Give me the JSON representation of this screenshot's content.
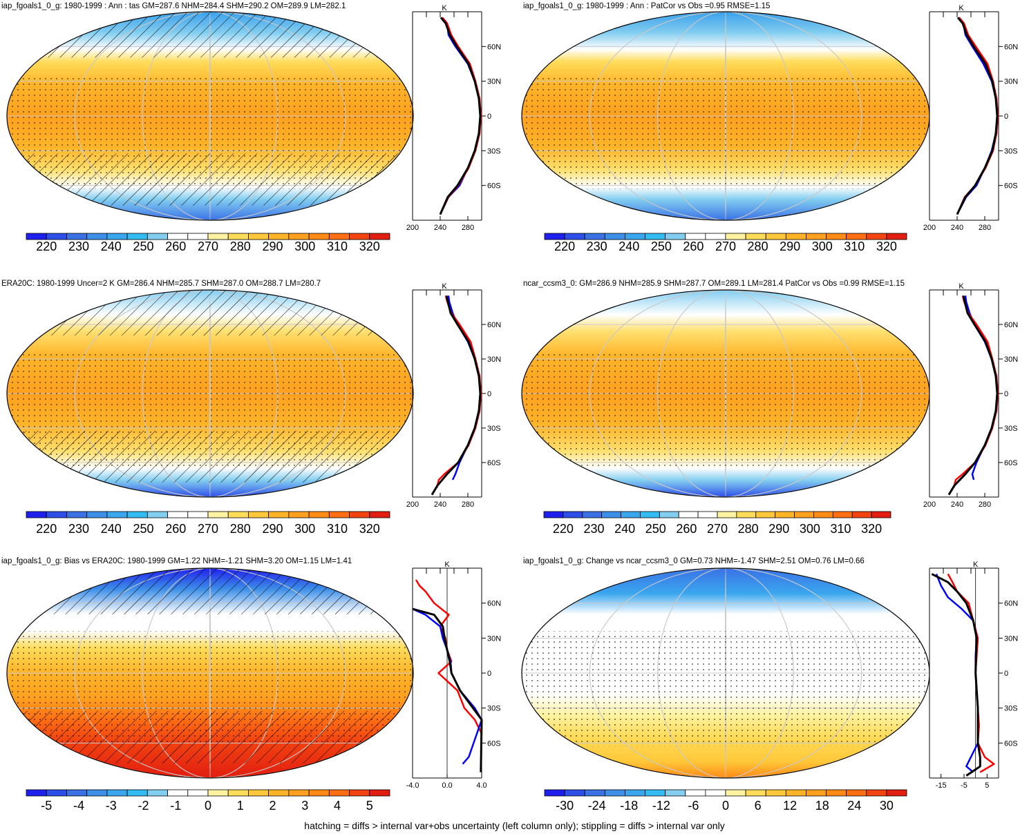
{
  "palettes": {
    "temp": [
      "#2020ee",
      "#2d4fe8",
      "#3a72e6",
      "#3d8fe8",
      "#3aa6ee",
      "#32bcf2",
      "#82cdf0",
      "#ffffff",
      "#ffffff",
      "#fff2a0",
      "#ffdc5a",
      "#ffc83a",
      "#ffb428",
      "#ffa01e",
      "#ff8a16",
      "#ff6e12",
      "#f24410",
      "#e11e10"
    ],
    "diff": [
      "#2020ee",
      "#2d4fe8",
      "#3a72e6",
      "#3d8fe8",
      "#3aa6ee",
      "#32bcf2",
      "#82cdf0",
      "#ffffff",
      "#ffffff",
      "#fff2a0",
      "#ffdc5a",
      "#ffc83a",
      "#ffb428",
      "#ffa01e",
      "#ff8a16",
      "#ff6e12",
      "#f24410",
      "#e11e10"
    ]
  },
  "colorbars": {
    "temp": [
      "220",
      "230",
      "240",
      "250",
      "260",
      "270",
      "280",
      "290",
      "300",
      "310",
      "320"
    ],
    "bias": [
      "-5",
      "-4",
      "-3",
      "-2",
      "-1",
      "0",
      "1",
      "2",
      "3",
      "4",
      "5"
    ],
    "change": [
      "-30",
      "-24",
      "-18",
      "-12",
      "-6",
      "0",
      "6",
      "12",
      "18",
      "24",
      "30"
    ]
  },
  "lat_ticks": [
    "60N",
    "30N",
    "0",
    "30S",
    "60S"
  ],
  "panels": [
    {
      "title": "iap_fgoals1_0_g: 1980-1999 : Ann : tas GM=287.6 NHM=284.4 SHM=290.2 OM=289.9 LM=282.1",
      "colorbar": "temp",
      "hatch": true,
      "xticks": [
        "200",
        "240",
        "280"
      ],
      "unit": "K"
    },
    {
      "title": "iap_fgoals1_0_g: 1980-1999 : Ann : PatCor vs Obs =0.95 RMSE=1.15",
      "colorbar": "temp",
      "hatch": false,
      "xticks": [
        "200",
        "240",
        "280"
      ],
      "unit": "K"
    },
    {
      "title": "ERA20C: 1980-1999 Uncer=2 K GM=286.4 NHM=285.7 SHM=287.0 OM=288.7 LM=280.7",
      "colorbar": "temp",
      "hatch": true,
      "xticks": [
        "200",
        "240",
        "280"
      ],
      "unit": "K"
    },
    {
      "title": "ncar_ccsm3_0: GM=286.9 NHM=285.9 SHM=287.7 OM=289.1 LM=281.4 PatCor vs Obs =0.99 RMSE=1.15",
      "colorbar": "temp",
      "hatch": false,
      "xticks": [
        "200",
        "240",
        "280"
      ],
      "unit": "K"
    },
    {
      "title": "iap_fgoals1_0_g: Bias vs ERA20C: 1980-1999 GM=1.22 NHM=-1.21 SHM=3.20 OM=1.15 LM=1.41",
      "colorbar": "bias",
      "hatch": true,
      "xticks": [
        "-4.0",
        "0.0",
        "4.0"
      ],
      "unit": "K"
    },
    {
      "title": "iap_fgoals1_0_g: Change vs ncar_ccsm3_0 GM=0.73 NHM=-1.47 SHM=2.51 OM=0.76 LM=0.66",
      "colorbar": "change",
      "hatch": false,
      "xticks": [
        "-15",
        "-5",
        "5"
      ],
      "unit": "K"
    }
  ],
  "caption": "hatching = diffs > internal var+obs uncertainty (left column only); stippling = diffs > internal var only",
  "chart_data": [
    {
      "type": "line",
      "title": "iap_fgoals1_0_g: 1980-1999 : Ann : tas GM=287.6 NHM=284.4 SHM=290.2 OM=289.9 LM=282.1",
      "xlabel": "K",
      "xlim": [
        200,
        300
      ],
      "ylim": [
        -90,
        90
      ],
      "yticks": [
        "60N",
        "30N",
        "0",
        "30S",
        "60S"
      ],
      "colorbar": [
        "220",
        "230",
        "240",
        "250",
        "260",
        "270",
        "280",
        "290",
        "300",
        "310",
        "320"
      ],
      "series": [
        {
          "color": "#0000ff",
          "lat": [
            -85,
            -70,
            -60,
            -45,
            -30,
            -15,
            0,
            15,
            30,
            45,
            60,
            70,
            80,
            85
          ],
          "values": [
            240,
            252,
            268,
            280,
            290,
            296,
            298,
            296,
            290,
            280,
            262,
            252,
            250,
            243
          ]
        },
        {
          "color": "#ff0000",
          "lat": [
            -85,
            -70,
            -60,
            -45,
            -30,
            -15,
            0,
            15,
            30,
            45,
            60,
            70,
            80,
            85
          ],
          "values": [
            240,
            252,
            266,
            281,
            291,
            297,
            299,
            297,
            291,
            283,
            266,
            256,
            250,
            243
          ]
        },
        {
          "color": "#000000",
          "lat": [
            -85,
            -70,
            -60,
            -45,
            -30,
            -15,
            0,
            15,
            30,
            45,
            60,
            70,
            80,
            85
          ],
          "values": [
            240,
            251,
            265,
            280,
            290,
            296,
            298,
            296,
            290,
            281,
            264,
            254,
            248,
            241
          ]
        }
      ]
    },
    {
      "type": "line",
      "title": "iap_fgoals1_0_g: 1980-1999 : Ann : PatCor vs Obs =0.95 RMSE=1.15",
      "xlabel": "K",
      "xlim": [
        200,
        300
      ],
      "ylim": [
        -90,
        90
      ],
      "yticks": [
        "60N",
        "30N",
        "0",
        "30S",
        "60S"
      ],
      "colorbar": [
        "220",
        "230",
        "240",
        "250",
        "260",
        "270",
        "280",
        "290",
        "300",
        "310",
        "320"
      ],
      "series": [
        {
          "color": "#0000ff",
          "lat": [
            -85,
            -70,
            -60,
            -45,
            -30,
            -15,
            0,
            15,
            30,
            45,
            60,
            70,
            80,
            85
          ],
          "values": [
            240,
            253,
            268,
            280,
            290,
            296,
            298,
            296,
            290,
            278,
            262,
            252,
            249,
            243
          ]
        },
        {
          "color": "#ff0000",
          "lat": [
            -85,
            -70,
            -60,
            -45,
            -30,
            -15,
            0,
            15,
            30,
            45,
            60,
            70,
            80,
            85
          ],
          "values": [
            240,
            251,
            266,
            281,
            292,
            297,
            299,
            297,
            292,
            284,
            267,
            256,
            250,
            243
          ]
        },
        {
          "color": "#000000",
          "lat": [
            -85,
            -70,
            -60,
            -45,
            -30,
            -15,
            0,
            15,
            30,
            45,
            60,
            70,
            80,
            85
          ],
          "values": [
            240,
            252,
            266,
            280,
            291,
            296,
            298,
            296,
            291,
            281,
            264,
            254,
            248,
            241
          ]
        }
      ]
    },
    {
      "type": "line",
      "title": "ERA20C: 1980-1999 Uncer=2 K GM=286.4 NHM=285.7 SHM=287.0 OM=288.7 LM=280.7",
      "xlabel": "K",
      "xlim": [
        200,
        300
      ],
      "ylim": [
        -90,
        90
      ],
      "yticks": [
        "60N",
        "30N",
        "0",
        "30S",
        "60S"
      ],
      "colorbar": [
        "220",
        "230",
        "240",
        "250",
        "260",
        "270",
        "280",
        "290",
        "300",
        "310",
        "320"
      ],
      "series": [
        {
          "color": "#0000ff",
          "lat": [
            -75,
            -70,
            -60,
            -45,
            -30,
            -15,
            0,
            15,
            30,
            45,
            60,
            70,
            80,
            85
          ],
          "values": [
            258,
            262,
            268,
            280,
            290,
            296,
            298,
            296,
            290,
            280,
            265,
            258,
            253,
            252
          ]
        },
        {
          "color": "#ff0000",
          "lat": [
            -82,
            -75,
            -70,
            -60,
            -45,
            -30,
            -15,
            0,
            15,
            30,
            45,
            60,
            70,
            80,
            85
          ],
          "values": [
            235,
            238,
            246,
            266,
            281,
            291,
            297,
            299,
            297,
            291,
            284,
            268,
            256,
            250,
            248
          ]
        },
        {
          "color": "#000000",
          "lat": [
            -88,
            -80,
            -70,
            -60,
            -45,
            -30,
            -15,
            0,
            15,
            30,
            45,
            60,
            70,
            80,
            85
          ],
          "values": [
            228,
            236,
            250,
            266,
            280,
            290,
            296,
            298,
            296,
            290,
            281,
            265,
            255,
            251,
            249
          ]
        }
      ]
    },
    {
      "type": "line",
      "title": "ncar_ccsm3_0: GM=286.9 NHM=285.9 SHM=287.7 OM=289.1 LM=281.4 PatCor vs Obs =0.99 RMSE=1.15",
      "xlabel": "K",
      "xlim": [
        200,
        300
      ],
      "ylim": [
        -90,
        90
      ],
      "yticks": [
        "60N",
        "30N",
        "0",
        "30S",
        "60S"
      ],
      "colorbar": [
        "220",
        "230",
        "240",
        "250",
        "260",
        "270",
        "280",
        "290",
        "300",
        "310",
        "320"
      ],
      "series": [
        {
          "color": "#0000ff",
          "lat": [
            -75,
            -70,
            -60,
            -45,
            -30,
            -15,
            0,
            15,
            30,
            45,
            60,
            70,
            80,
            85
          ],
          "values": [
            264,
            262,
            268,
            280,
            290,
            296,
            298,
            296,
            290,
            280,
            265,
            258,
            253,
            252
          ]
        },
        {
          "color": "#ff0000",
          "lat": [
            -82,
            -75,
            -70,
            -60,
            -45,
            -30,
            -15,
            0,
            15,
            30,
            45,
            60,
            70,
            80,
            85
          ],
          "values": [
            235,
            238,
            248,
            266,
            281,
            291,
            297,
            299,
            297,
            291,
            284,
            268,
            256,
            250,
            248
          ]
        },
        {
          "color": "#000000",
          "lat": [
            -88,
            -80,
            -70,
            -60,
            -45,
            -30,
            -15,
            0,
            15,
            30,
            45,
            60,
            70,
            80,
            85
          ],
          "values": [
            228,
            236,
            252,
            266,
            280,
            290,
            296,
            298,
            296,
            290,
            281,
            265,
            255,
            251,
            249
          ]
        }
      ]
    },
    {
      "type": "line",
      "title": "iap_fgoals1_0_g: Bias vs ERA20C: 1980-1999 GM=1.22 NHM=-1.21 SHM=3.20 OM=1.15 LM=1.41",
      "xlabel": "K",
      "xlim": [
        -4,
        4
      ],
      "ylim": [
        -90,
        90
      ],
      "yticks": [
        "60N",
        "30N",
        "0",
        "30S",
        "60S"
      ],
      "colorbar": [
        "-5",
        "-4",
        "-3",
        "-2",
        "-1",
        "0",
        "1",
        "2",
        "3",
        "4",
        "5"
      ],
      "series": [
        {
          "color": "#ff0000",
          "lat": [
            -52,
            -40,
            -30,
            -15,
            0,
            10,
            20,
            30,
            40,
            50,
            60,
            70,
            75,
            80
          ],
          "values": [
            4.0,
            3.2,
            2.0,
            1.2,
            -1.0,
            0.5,
            0.0,
            -0.2,
            -0.8,
            0.2,
            -1.5,
            -2.5,
            -3.2,
            -3.6
          ]
        },
        {
          "color": "#0000ff",
          "lat": [
            -78,
            -72,
            -40,
            -30,
            -15,
            0,
            10,
            20,
            30,
            40,
            50,
            55
          ],
          "values": [
            1.8,
            2.5,
            4.0,
            3.2,
            1.5,
            0.5,
            0.4,
            0.0,
            -0.5,
            -0.8,
            -2.5,
            -4.0
          ]
        },
        {
          "color": "#000000",
          "lat": [
            -85,
            -40,
            -30,
            -15,
            0,
            10,
            20,
            30,
            40,
            50,
            55
          ],
          "values": [
            3.9,
            4.0,
            3.0,
            1.5,
            0.5,
            0.3,
            0.0,
            -0.3,
            -0.5,
            -1.5,
            -4.0
          ]
        }
      ]
    },
    {
      "type": "line",
      "title": "iap_fgoals1_0_g: Change vs ncar_ccsm3_0 GM=0.73 NHM=-1.47 SHM=2.51 OM=0.76 LM=0.66",
      "xlabel": "K",
      "xlim": [
        -20,
        10
      ],
      "ylim": [
        -90,
        90
      ],
      "yticks": [
        "60N",
        "30N",
        "0",
        "30S",
        "60S"
      ],
      "colorbar": [
        "-30",
        "-24",
        "-18",
        "-12",
        "-6",
        "0",
        "6",
        "12",
        "18",
        "24",
        "30"
      ],
      "series": [
        {
          "color": "#ff0000",
          "lat": [
            -85,
            -78,
            -72,
            -60,
            -45,
            -30,
            -15,
            0,
            15,
            30,
            45,
            60,
            70,
            78,
            85
          ],
          "values": [
            2,
            8,
            4,
            1,
            1.5,
            1,
            0.5,
            0,
            0.5,
            1,
            -1,
            -3,
            -8,
            -10,
            -12
          ]
        },
        {
          "color": "#0000ff",
          "lat": [
            -85,
            -80,
            -72,
            -60,
            -45,
            -30,
            -15,
            0,
            15,
            30,
            45,
            55,
            65,
            75,
            85
          ],
          "values": [
            -1,
            -4,
            -2,
            1,
            1,
            1,
            0.5,
            0,
            0,
            0.5,
            -1,
            -6,
            -12,
            -15,
            -17
          ]
        },
        {
          "color": "#000000",
          "lat": [
            -88,
            -80,
            -72,
            -60,
            -45,
            -30,
            -15,
            0,
            15,
            30,
            45,
            60,
            70,
            78,
            85
          ],
          "values": [
            -4,
            2,
            2,
            1,
            1,
            1,
            0.5,
            0,
            0.2,
            0.5,
            -1,
            -4,
            -8,
            -12,
            -19
          ]
        }
      ]
    }
  ]
}
